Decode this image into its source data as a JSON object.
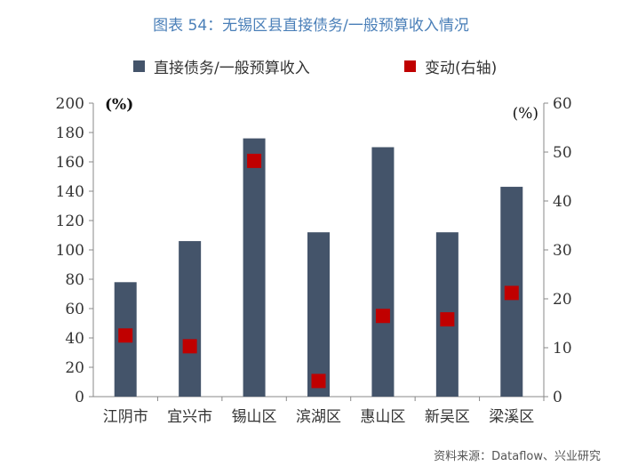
{
  "title": "图表 54：无锡区县直接债务/一般预算收入情况",
  "source": "资料来源：Dataflow、兴业研究",
  "colors": {
    "bar": "#44546a",
    "marker": "#c00000",
    "title": "#4a7fb8"
  },
  "chart_data": {
    "type": "bar",
    "categories": [
      "江阴市",
      "宜兴市",
      "锡山区",
      "滨湖区",
      "惠山区",
      "新吴区",
      "梁溪区"
    ],
    "series": [
      {
        "name": "直接债务/一般预算收入",
        "type": "bar",
        "axis": "left",
        "values": [
          78,
          106,
          176,
          112,
          170,
          112,
          143
        ]
      },
      {
        "name": "变动(右轴)",
        "type": "scatter",
        "axis": "right",
        "values": [
          12.5,
          10.3,
          48.2,
          3.2,
          16.5,
          15.8,
          21.2
        ]
      }
    ],
    "ylim": [
      0,
      200
    ],
    "y2lim": [
      0,
      60
    ],
    "yticks": [
      0,
      20,
      40,
      60,
      80,
      100,
      120,
      140,
      160,
      180,
      200
    ],
    "y2ticks": [
      0,
      10,
      20,
      30,
      40,
      50,
      60
    ],
    "ylabel": "(%)",
    "y2label": "(%)",
    "grid": false,
    "legend": "top"
  }
}
